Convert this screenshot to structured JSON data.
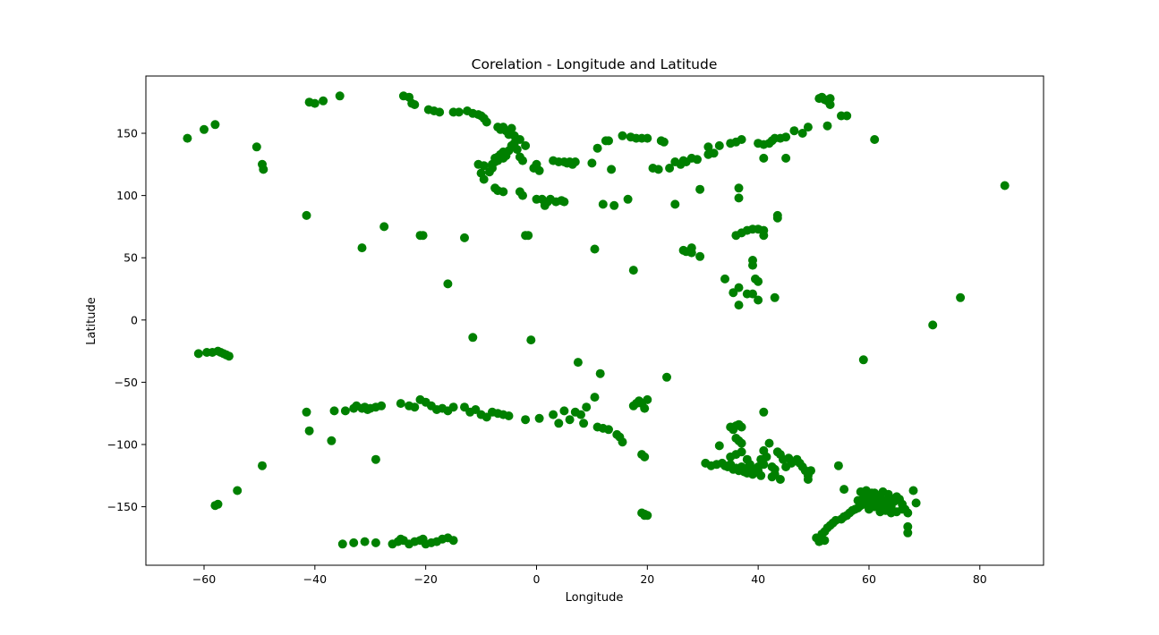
{
  "chart_data": {
    "type": "scatter",
    "title": "Corelation - Longitude and Latitude",
    "xlabel": "Longitude",
    "ylabel": "Latitude",
    "xlim": [
      -70.5,
      91.5
    ],
    "ylim": [
      -197,
      196
    ],
    "xticks": [
      -60,
      -40,
      -20,
      0,
      20,
      40,
      60,
      80
    ],
    "yticks": [
      -150,
      -100,
      -50,
      0,
      50,
      100,
      150
    ],
    "xtick_labels": [
      "−60",
      "−40",
      "−20",
      "0",
      "20",
      "40",
      "60",
      "80"
    ],
    "ytick_labels": [
      "−150",
      "−100",
      "−50",
      "0",
      "50",
      "100",
      "150"
    ],
    "grid": false,
    "marker_color": "#008000",
    "points": [
      [
        -63,
        146
      ],
      [
        -60,
        153
      ],
      [
        -58,
        157
      ],
      [
        -50.5,
        139
      ],
      [
        -49.5,
        125
      ],
      [
        -49.3,
        121
      ],
      [
        -41.5,
        84
      ],
      [
        -41,
        175
      ],
      [
        -40,
        174
      ],
      [
        -38.5,
        176
      ],
      [
        -35.5,
        180
      ],
      [
        -31.5,
        58
      ],
      [
        -27.5,
        75
      ],
      [
        -24,
        180
      ],
      [
        -23,
        179
      ],
      [
        -22.5,
        174
      ],
      [
        -22,
        173
      ],
      [
        -21,
        68
      ],
      [
        -20.5,
        68
      ],
      [
        -19.5,
        169
      ],
      [
        -18.5,
        168
      ],
      [
        -17.5,
        167
      ],
      [
        -16,
        29
      ],
      [
        -15,
        167
      ],
      [
        -14,
        167
      ],
      [
        -13,
        66
      ],
      [
        -12.5,
        168
      ],
      [
        -11.5,
        -14
      ],
      [
        -11.5,
        166
      ],
      [
        -10.5,
        165
      ],
      [
        -10,
        164
      ],
      [
        -9.5,
        162
      ],
      [
        -9,
        159
      ],
      [
        -10.5,
        125
      ],
      [
        -9.5,
        124
      ],
      [
        -10,
        118
      ],
      [
        -9.5,
        113
      ],
      [
        -8.5,
        119
      ],
      [
        -8,
        122
      ],
      [
        -7.5,
        130
      ],
      [
        -7,
        131
      ],
      [
        -6.5,
        133
      ],
      [
        -6,
        135
      ],
      [
        -7.5,
        106
      ],
      [
        -7,
        104
      ],
      [
        -6,
        103
      ],
      [
        -8,
        125
      ],
      [
        -7.5,
        127
      ],
      [
        -7,
        128
      ],
      [
        -6,
        130
      ],
      [
        -5.5,
        132
      ],
      [
        -5,
        136
      ],
      [
        -4.5,
        140
      ],
      [
        -4,
        142
      ],
      [
        -3.5,
        137
      ],
      [
        -3,
        131
      ],
      [
        -2.5,
        128
      ],
      [
        -2,
        140
      ],
      [
        -6,
        155
      ],
      [
        -5.5,
        152
      ],
      [
        -5,
        149
      ],
      [
        -4.5,
        154
      ],
      [
        -4,
        148
      ],
      [
        -3.5,
        145
      ],
      [
        -3,
        145
      ],
      [
        -6.5,
        153
      ],
      [
        -7,
        155
      ],
      [
        -3,
        103
      ],
      [
        -2.5,
        100
      ],
      [
        -2,
        68
      ],
      [
        -1.5,
        68
      ],
      [
        -1,
        -16
      ],
      [
        -0.5,
        122
      ],
      [
        0,
        125
      ],
      [
        0.5,
        120
      ],
      [
        0,
        97
      ],
      [
        1,
        97
      ],
      [
        1.5,
        92
      ],
      [
        2,
        95
      ],
      [
        2.5,
        97
      ],
      [
        3,
        128
      ],
      [
        3.5,
        95
      ],
      [
        4,
        127
      ],
      [
        4.5,
        96
      ],
      [
        5,
        95
      ],
      [
        5,
        127
      ],
      [
        5.5,
        126
      ],
      [
        6,
        127
      ],
      [
        6.5,
        125
      ],
      [
        7,
        127
      ],
      [
        10,
        126
      ],
      [
        10.5,
        57
      ],
      [
        11,
        138
      ],
      [
        12,
        93
      ],
      [
        12.5,
        144
      ],
      [
        13,
        144
      ],
      [
        13.5,
        121
      ],
      [
        14,
        92
      ],
      [
        15.5,
        148
      ],
      [
        16.5,
        97
      ],
      [
        17,
        147
      ],
      [
        17.5,
        40
      ],
      [
        18,
        146
      ],
      [
        19,
        146
      ],
      [
        20,
        146
      ],
      [
        21,
        122
      ],
      [
        22,
        121
      ],
      [
        22.5,
        144
      ],
      [
        23,
        143
      ],
      [
        24,
        122
      ],
      [
        25,
        93
      ],
      [
        25,
        127
      ],
      [
        26,
        125
      ],
      [
        26.5,
        128
      ],
      [
        27,
        127
      ],
      [
        28,
        130
      ],
      [
        29,
        129
      ],
      [
        29.5,
        105
      ],
      [
        29.5,
        51
      ],
      [
        31,
        133
      ],
      [
        31,
        139
      ],
      [
        32,
        134
      ],
      [
        33,
        140
      ],
      [
        34,
        33
      ],
      [
        35,
        142
      ],
      [
        36,
        143
      ],
      [
        37,
        145
      ],
      [
        36.5,
        106
      ],
      [
        36.5,
        98
      ],
      [
        36,
        68
      ],
      [
        37,
        70
      ],
      [
        38,
        72
      ],
      [
        39,
        73
      ],
      [
        40,
        73
      ],
      [
        41,
        72
      ],
      [
        41,
        68
      ],
      [
        43.5,
        82
      ],
      [
        43.5,
        84
      ],
      [
        35.5,
        22
      ],
      [
        36.5,
        26
      ],
      [
        36.5,
        12
      ],
      [
        38,
        21
      ],
      [
        39,
        21
      ],
      [
        39,
        44
      ],
      [
        39,
        48
      ],
      [
        39.5,
        33
      ],
      [
        40,
        31
      ],
      [
        40,
        16
      ],
      [
        43,
        18
      ],
      [
        27,
        55
      ],
      [
        28,
        54
      ],
      [
        28,
        58
      ],
      [
        26.5,
        56
      ],
      [
        40,
        142
      ],
      [
        41,
        130
      ],
      [
        41,
        141
      ],
      [
        42,
        142
      ],
      [
        42.5,
        144
      ],
      [
        43,
        146
      ],
      [
        44,
        146
      ],
      [
        45,
        147
      ],
      [
        45,
        130
      ],
      [
        46.5,
        152
      ],
      [
        48,
        150
      ],
      [
        49,
        155
      ],
      [
        51,
        178
      ],
      [
        51.5,
        179
      ],
      [
        52,
        177
      ],
      [
        52.5,
        176
      ],
      [
        53,
        178
      ],
      [
        52.5,
        156
      ],
      [
        53,
        173
      ],
      [
        55,
        164
      ],
      [
        56,
        164
      ],
      [
        61,
        145
      ],
      [
        84.5,
        108
      ],
      [
        76.5,
        18
      ],
      [
        71.5,
        -4
      ],
      [
        59,
        -32
      ],
      [
        -61,
        -27
      ],
      [
        -59.5,
        -26
      ],
      [
        -58.5,
        -26
      ],
      [
        -57.5,
        -25
      ],
      [
        -57,
        -26
      ],
      [
        -56.5,
        -27
      ],
      [
        -56,
        -28
      ],
      [
        -55.5,
        -29
      ],
      [
        -54,
        -137
      ],
      [
        -49.5,
        -117
      ],
      [
        -41.5,
        -74
      ],
      [
        -41,
        -89
      ],
      [
        -37,
        -97
      ],
      [
        -36.5,
        -73
      ],
      [
        -34.5,
        -73
      ],
      [
        -33,
        -71
      ],
      [
        -32.5,
        -69
      ],
      [
        -31.5,
        -71
      ],
      [
        -31,
        -70
      ],
      [
        -30.5,
        -72
      ],
      [
        -30,
        -71
      ],
      [
        -29,
        -70
      ],
      [
        -28,
        -69
      ],
      [
        -29,
        -112
      ],
      [
        -35,
        -180
      ],
      [
        -33,
        -179
      ],
      [
        -31,
        -178
      ],
      [
        -29,
        -179
      ],
      [
        -58,
        -149
      ],
      [
        -57.5,
        -148
      ],
      [
        -24.5,
        -67
      ],
      [
        -23,
        -69
      ],
      [
        -22,
        -70
      ],
      [
        -21,
        -64
      ],
      [
        -20,
        -66
      ],
      [
        -19,
        -69
      ],
      [
        -18,
        -72
      ],
      [
        -17,
        -71
      ],
      [
        -16,
        -73
      ],
      [
        -15,
        -70
      ],
      [
        -13,
        -70
      ],
      [
        -12,
        -74
      ],
      [
        -11,
        -72
      ],
      [
        -10,
        -76
      ],
      [
        -9,
        -78
      ],
      [
        -8,
        -74
      ],
      [
        -7,
        -75
      ],
      [
        -6,
        -76
      ],
      [
        -5,
        -77
      ],
      [
        -2,
        -80
      ],
      [
        0.5,
        -79
      ],
      [
        3,
        -76
      ],
      [
        4,
        -83
      ],
      [
        5,
        -73
      ],
      [
        6,
        -80
      ],
      [
        7,
        -74
      ],
      [
        7.5,
        -34
      ],
      [
        8,
        -76
      ],
      [
        8.5,
        -83
      ],
      [
        9,
        -70
      ],
      [
        10.5,
        -62
      ],
      [
        11,
        -86
      ],
      [
        11.5,
        -43
      ],
      [
        12,
        -87
      ],
      [
        13,
        -88
      ],
      [
        14.5,
        -92
      ],
      [
        15,
        -94
      ],
      [
        15.5,
        -98
      ],
      [
        17.5,
        -69
      ],
      [
        18,
        -67
      ],
      [
        18.5,
        -65
      ],
      [
        19,
        -67
      ],
      [
        19.5,
        -71
      ],
      [
        20,
        -64
      ],
      [
        19,
        -108
      ],
      [
        19.5,
        -110
      ],
      [
        23.5,
        -46
      ],
      [
        -26,
        -180
      ],
      [
        -25,
        -178
      ],
      [
        -24,
        -177
      ],
      [
        -23,
        -180
      ],
      [
        -22,
        -178
      ],
      [
        -21,
        -177
      ],
      [
        -20,
        -180
      ],
      [
        -19,
        -179
      ],
      [
        -18,
        -178
      ],
      [
        -17,
        -176
      ],
      [
        -16,
        -175
      ],
      [
        -15,
        -177
      ],
      [
        -24.5,
        -176
      ],
      [
        -20.5,
        -176
      ],
      [
        19,
        -155
      ],
      [
        19.5,
        -156
      ],
      [
        20,
        -157
      ],
      [
        19.5,
        -157
      ],
      [
        30.5,
        -115
      ],
      [
        31.5,
        -117
      ],
      [
        32.5,
        -116
      ],
      [
        33,
        -101
      ],
      [
        33.5,
        -115
      ],
      [
        34,
        -117
      ],
      [
        34.5,
        -118
      ],
      [
        35,
        -116
      ],
      [
        35,
        -86
      ],
      [
        35.5,
        -88
      ],
      [
        36,
        -85
      ],
      [
        36.5,
        -84
      ],
      [
        37,
        -86
      ],
      [
        36,
        -95
      ],
      [
        36.5,
        -97
      ],
      [
        37,
        -99
      ],
      [
        37,
        -106
      ],
      [
        35.5,
        -120
      ],
      [
        36,
        -119
      ],
      [
        36.5,
        -121
      ],
      [
        37,
        -118
      ],
      [
        37.5,
        -122
      ],
      [
        38,
        -119
      ],
      [
        38.5,
        -116
      ],
      [
        39,
        -120
      ],
      [
        39.5,
        -122
      ],
      [
        40,
        -118
      ],
      [
        40.5,
        -112
      ],
      [
        41,
        -105
      ],
      [
        41,
        -74
      ],
      [
        41.5,
        -110
      ],
      [
        42,
        -99
      ],
      [
        42.5,
        -118
      ],
      [
        40.5,
        -125
      ],
      [
        42.5,
        -126
      ],
      [
        43,
        -120
      ],
      [
        43.5,
        -106
      ],
      [
        44,
        -108
      ],
      [
        44.5,
        -112
      ],
      [
        45,
        -118
      ],
      [
        45.5,
        -111
      ],
      [
        46,
        -115
      ],
      [
        47,
        -112
      ],
      [
        47.5,
        -115
      ],
      [
        48,
        -118
      ],
      [
        48.5,
        -121
      ],
      [
        49,
        -125
      ],
      [
        49.5,
        -121
      ],
      [
        38,
        -123
      ],
      [
        39,
        -124
      ],
      [
        40,
        -121
      ],
      [
        44,
        -128
      ],
      [
        49,
        -128
      ],
      [
        36,
        -108
      ],
      [
        35,
        -110
      ],
      [
        38,
        -112
      ],
      [
        41,
        -116
      ],
      [
        43,
        -124
      ],
      [
        54.5,
        -117
      ],
      [
        55.5,
        -136
      ],
      [
        50.5,
        -175
      ],
      [
        51,
        -178
      ],
      [
        51.5,
        -172
      ],
      [
        52,
        -170
      ],
      [
        52,
        -177
      ],
      [
        52.5,
        -167
      ],
      [
        53,
        -165
      ],
      [
        53.5,
        -163
      ],
      [
        54,
        -161
      ],
      [
        55,
        -160
      ],
      [
        55.5,
        -158
      ],
      [
        56,
        -157
      ],
      [
        56.5,
        -155
      ],
      [
        57,
        -153
      ],
      [
        57.5,
        -152
      ],
      [
        58,
        -151
      ],
      [
        58.5,
        -149
      ],
      [
        59,
        -148
      ],
      [
        59.5,
        -147
      ],
      [
        60,
        -146
      ],
      [
        60.5,
        -145
      ],
      [
        61,
        -144
      ],
      [
        61.5,
        -143
      ],
      [
        62,
        -142
      ],
      [
        62.5,
        -145
      ],
      [
        63,
        -148
      ],
      [
        63.5,
        -151
      ],
      [
        64,
        -150
      ],
      [
        64.5,
        -146
      ],
      [
        65,
        -142
      ],
      [
        65.5,
        -144
      ],
      [
        66,
        -148
      ],
      [
        66.5,
        -152
      ],
      [
        67,
        -155
      ],
      [
        67,
        -166
      ],
      [
        67,
        -171
      ],
      [
        68,
        -137
      ],
      [
        68.5,
        -147
      ],
      [
        58.5,
        -138
      ],
      [
        59.5,
        -137
      ],
      [
        60.5,
        -139
      ],
      [
        61.5,
        -141
      ],
      [
        62.5,
        -138
      ],
      [
        63.5,
        -140
      ],
      [
        58,
        -145
      ],
      [
        59,
        -143
      ],
      [
        60,
        -141
      ],
      [
        61,
        -139
      ],
      [
        62,
        -154
      ],
      [
        63,
        -153
      ],
      [
        64,
        -155
      ],
      [
        65,
        -154
      ],
      [
        66,
        -152
      ],
      [
        60,
        -152
      ],
      [
        61,
        -150
      ],
      [
        62,
        -148
      ],
      [
        63,
        -146
      ],
      [
        64,
        -144
      ],
      [
        61.5,
        -147
      ],
      [
        62.5,
        -151
      ],
      [
        60.5,
        -148
      ]
    ]
  }
}
